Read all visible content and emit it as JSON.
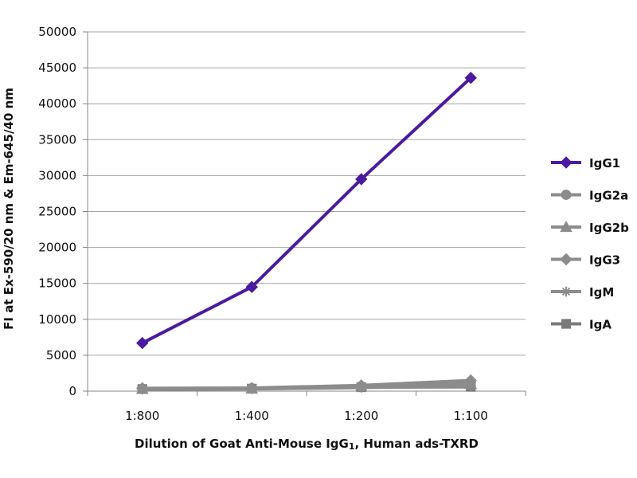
{
  "chart_data": {
    "type": "line",
    "categories": [
      "1:800",
      "1:400",
      "1:200",
      "1:100"
    ],
    "xlabel_parts": [
      "Dilution of Goat Anti-Mouse IgG",
      "1",
      ", Human ads-TXRD"
    ],
    "ylabel": "FI at Ex-590/20 nm & Em-645/40 nm",
    "ylim": [
      0,
      50000
    ],
    "yticks": [
      0,
      5000,
      10000,
      15000,
      20000,
      25000,
      30000,
      35000,
      40000,
      45000,
      50000
    ],
    "grid": true,
    "legend_position": "right",
    "series": [
      {
        "name": "IgG1",
        "marker": "diamond",
        "color": "#4b1aa0",
        "values": [
          6700,
          14500,
          29500,
          43600
        ]
      },
      {
        "name": "IgG2a",
        "marker": "circle",
        "color": "#8c8c8c",
        "values": [
          350,
          400,
          700,
          1200
        ]
      },
      {
        "name": "IgG2b",
        "marker": "triangle",
        "color": "#8c8c8c",
        "values": [
          300,
          350,
          650,
          1000
        ]
      },
      {
        "name": "IgG3",
        "marker": "diamond",
        "color": "#8c8c8c",
        "values": [
          400,
          450,
          800,
          1500
        ]
      },
      {
        "name": "IgM",
        "marker": "star",
        "color": "#8c8c8c",
        "values": [
          250,
          300,
          500,
          700
        ]
      },
      {
        "name": "IgA",
        "marker": "square",
        "color": "#7a7a7a",
        "values": [
          300,
          350,
          550,
          600
        ]
      }
    ]
  }
}
